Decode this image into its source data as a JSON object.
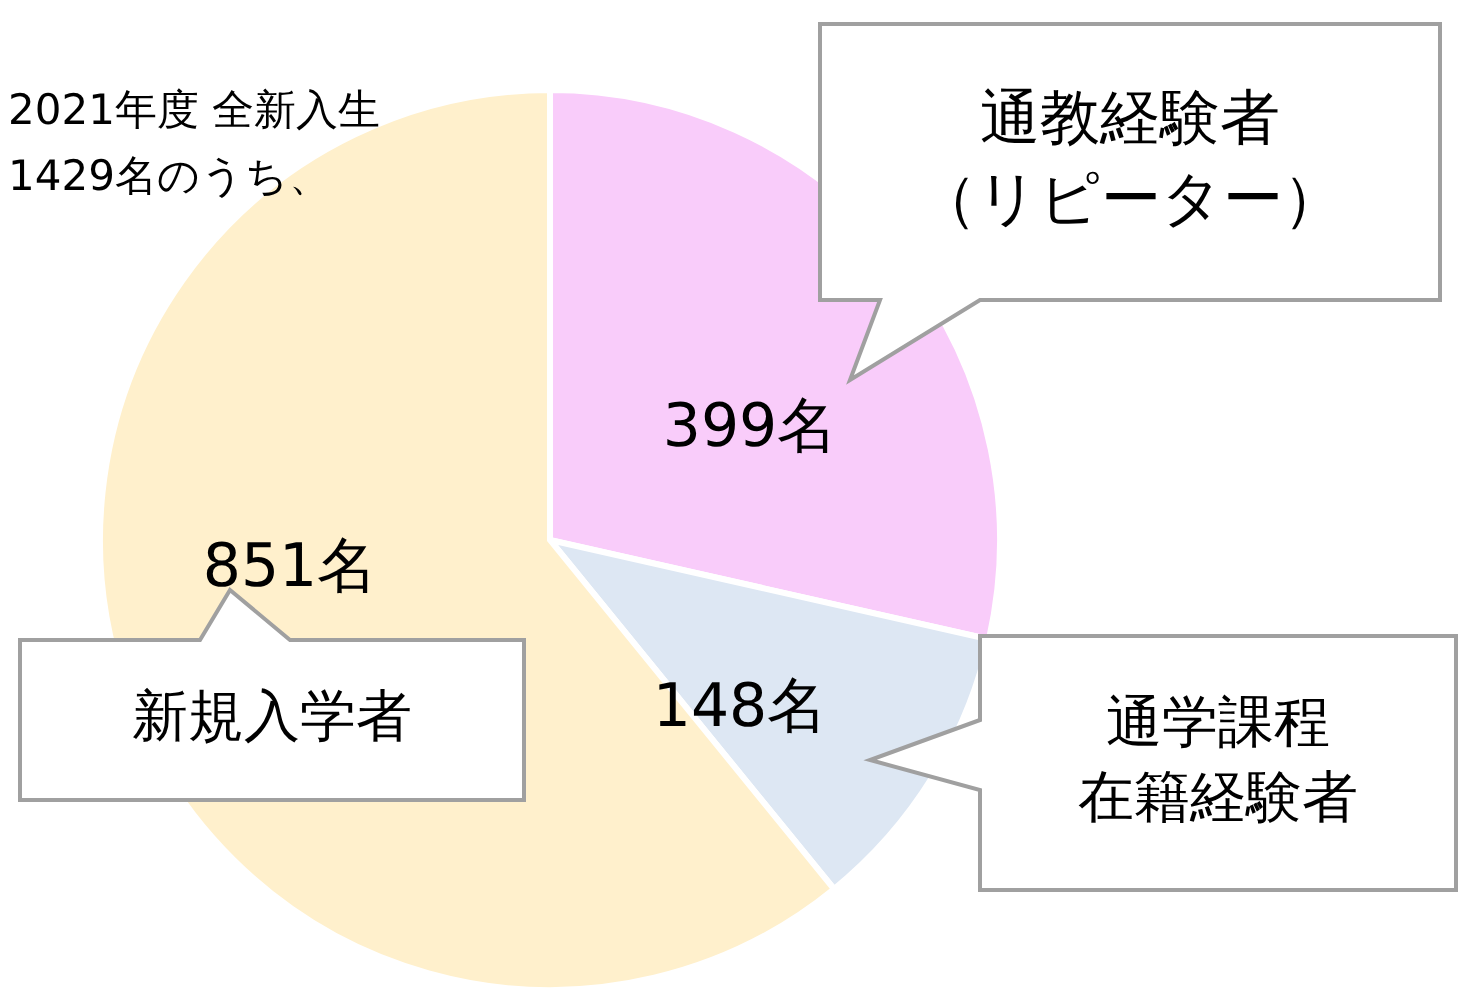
{
  "chart_data": {
    "type": "pie",
    "title": "2021年度 全新入生\n1429名のうち、",
    "categories": [
      "通教経験者（リピーター）",
      "通学課程在籍経験者",
      "新規入学者"
    ],
    "values": [
      399,
      148,
      851
    ],
    "colors": [
      "#f9ccfa",
      "#dde7f3",
      "#fff0cc"
    ],
    "value_labels": [
      "399名",
      "148名",
      "851名"
    ]
  }
}
